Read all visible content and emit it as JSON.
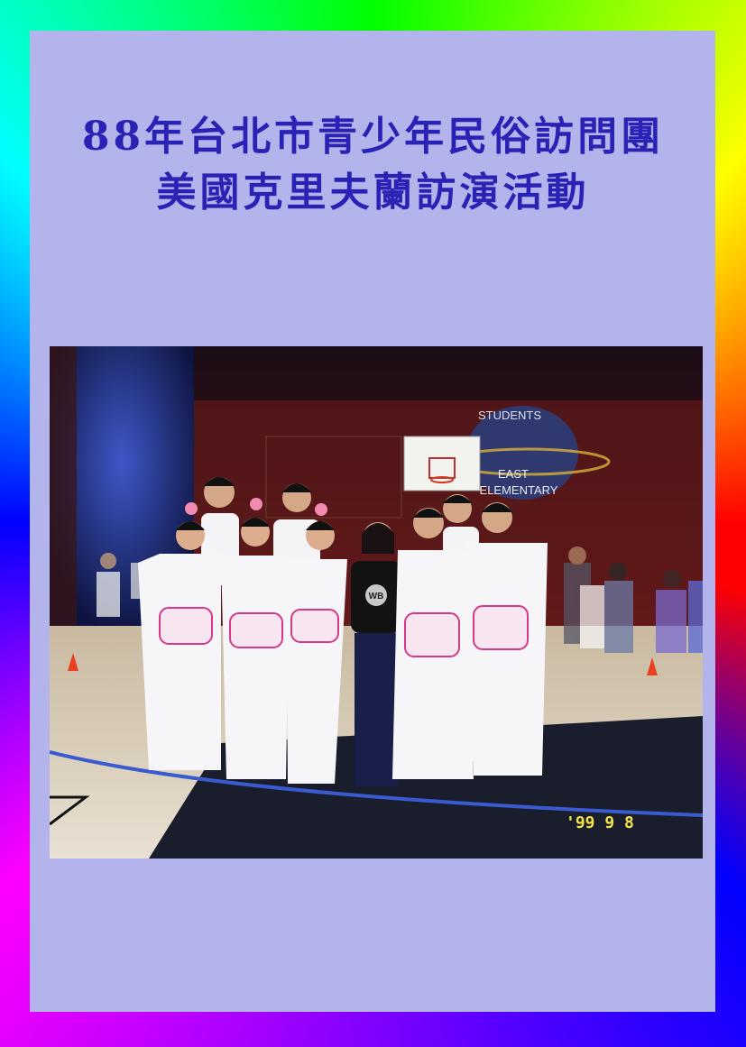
{
  "poster": {
    "title_line1": "88年台北市青少年民俗訪問團",
    "title_line2": "美國克里夫蘭訪演活動",
    "frame_colors": [
      "#ff0000",
      "#ff00ff",
      "#0000ff",
      "#00ffff",
      "#00ff00",
      "#ffff00"
    ],
    "panel_color": "#b4b4ec",
    "title_color": "#2a21b5"
  },
  "photo": {
    "wall_sign_line1": "STUDENTS",
    "wall_sign_line2": "EAST",
    "wall_sign_line3": "ELEMENTARY",
    "date_stamp": "'99  9  8",
    "shirt_logo": "WB"
  }
}
